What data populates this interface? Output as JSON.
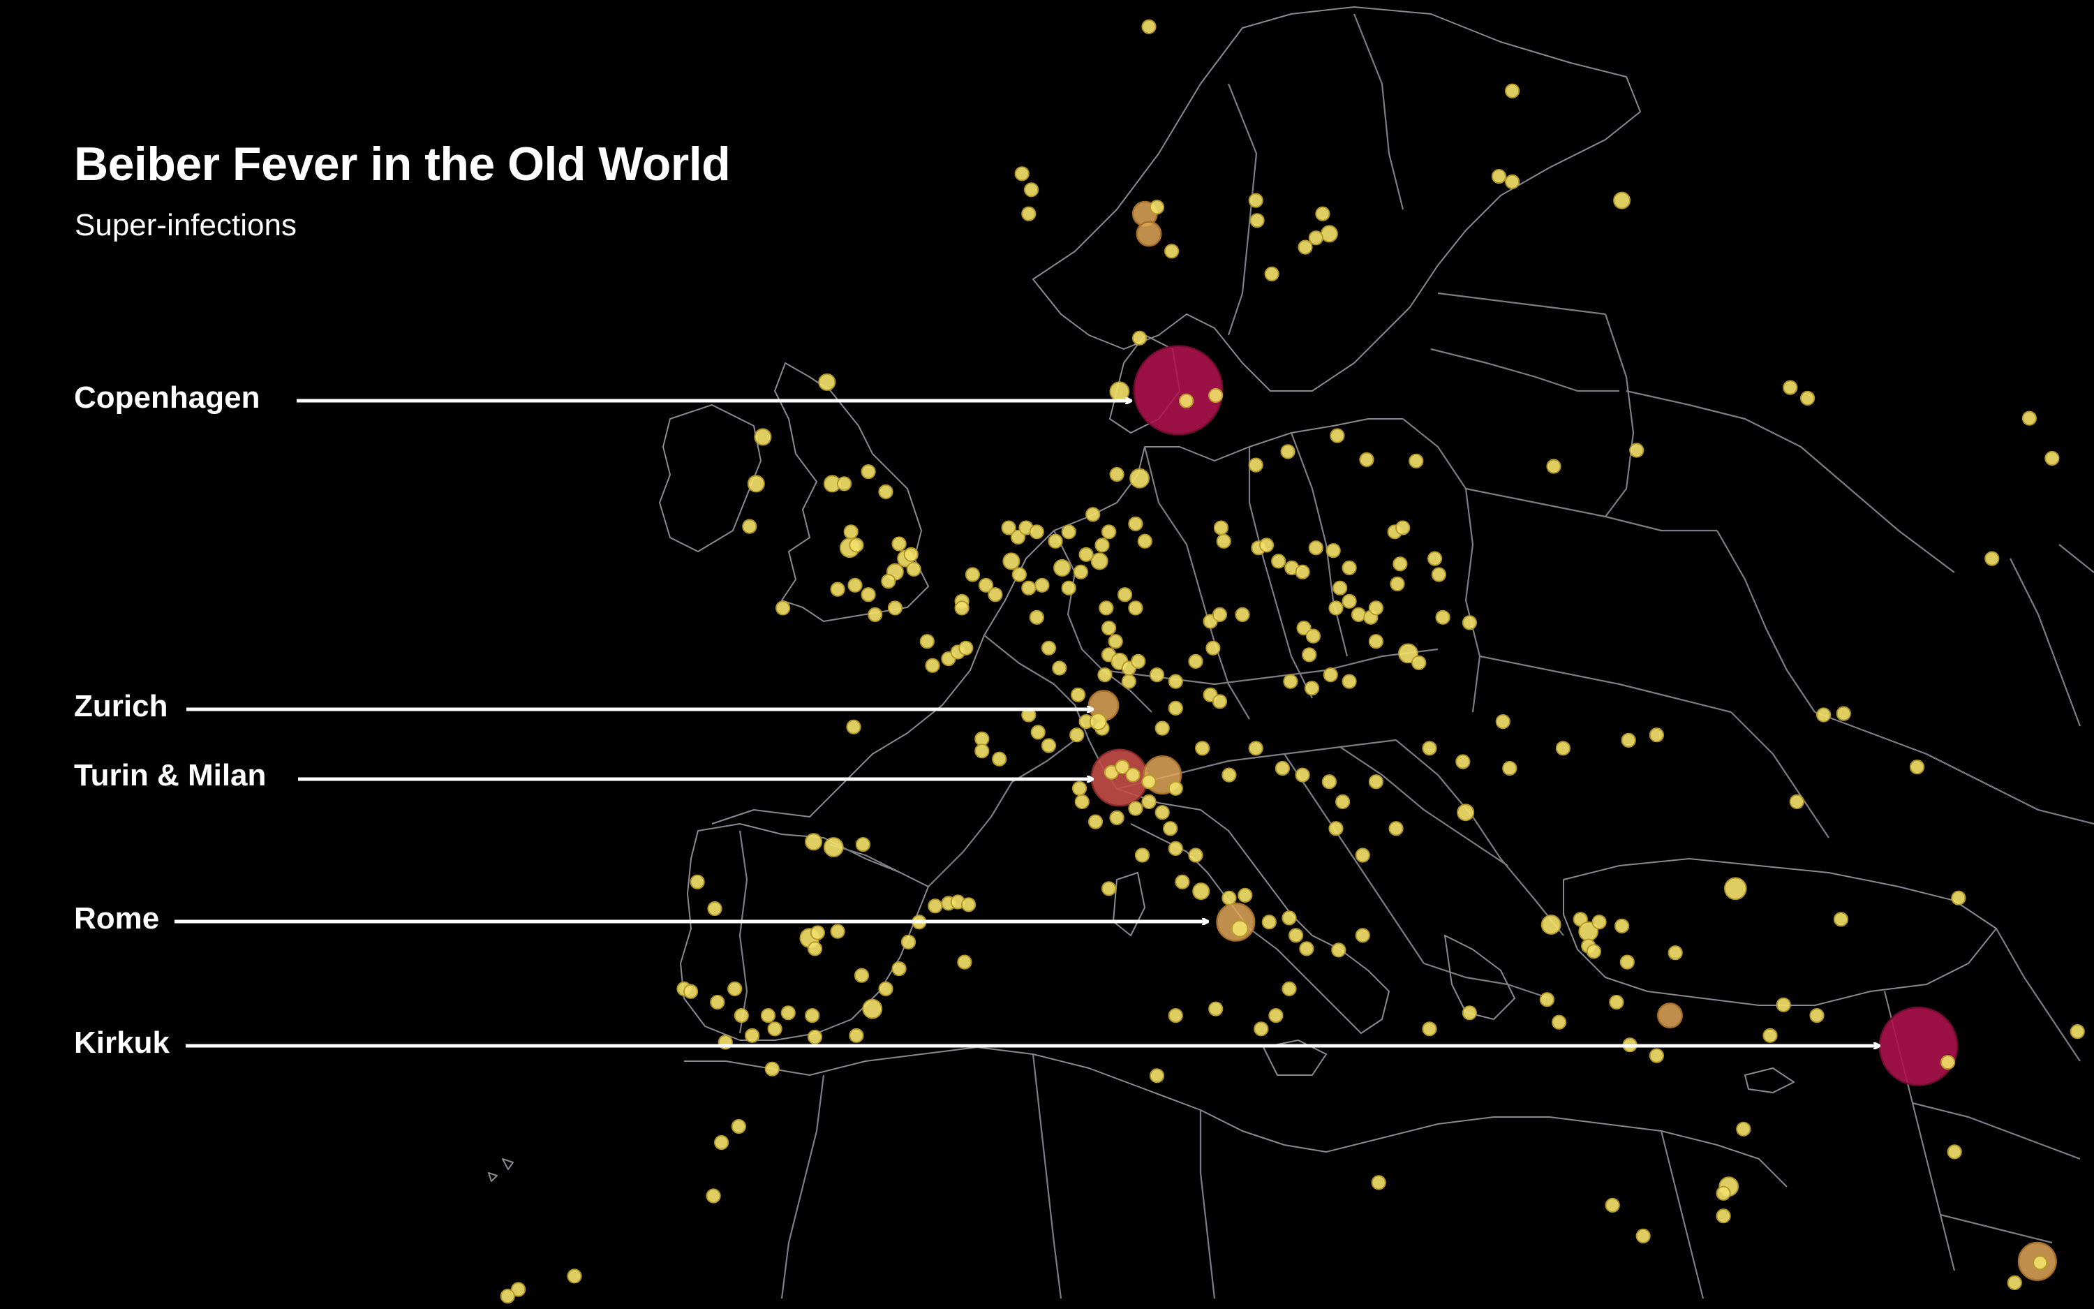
{
  "title": "Beiber Fever in the Old World",
  "subtitle": "Super-infections",
  "colors": {
    "background": "#000000",
    "border": "#7d7d84",
    "small_dot": "#f1e06a",
    "medium_dot": "#e0a75a",
    "large_dot": "#c44e48",
    "hotspot": "#b0124f",
    "label": "#ffffff"
  },
  "callouts": [
    {
      "label": "Copenhagen",
      "severity": "highest"
    },
    {
      "label": "Zurich",
      "severity": "medium"
    },
    {
      "label": "Turin & Milan",
      "severity": "high"
    },
    {
      "label": "Rome",
      "severity": "medium"
    },
    {
      "label": "Kirkuk",
      "severity": "highest"
    }
  ]
}
